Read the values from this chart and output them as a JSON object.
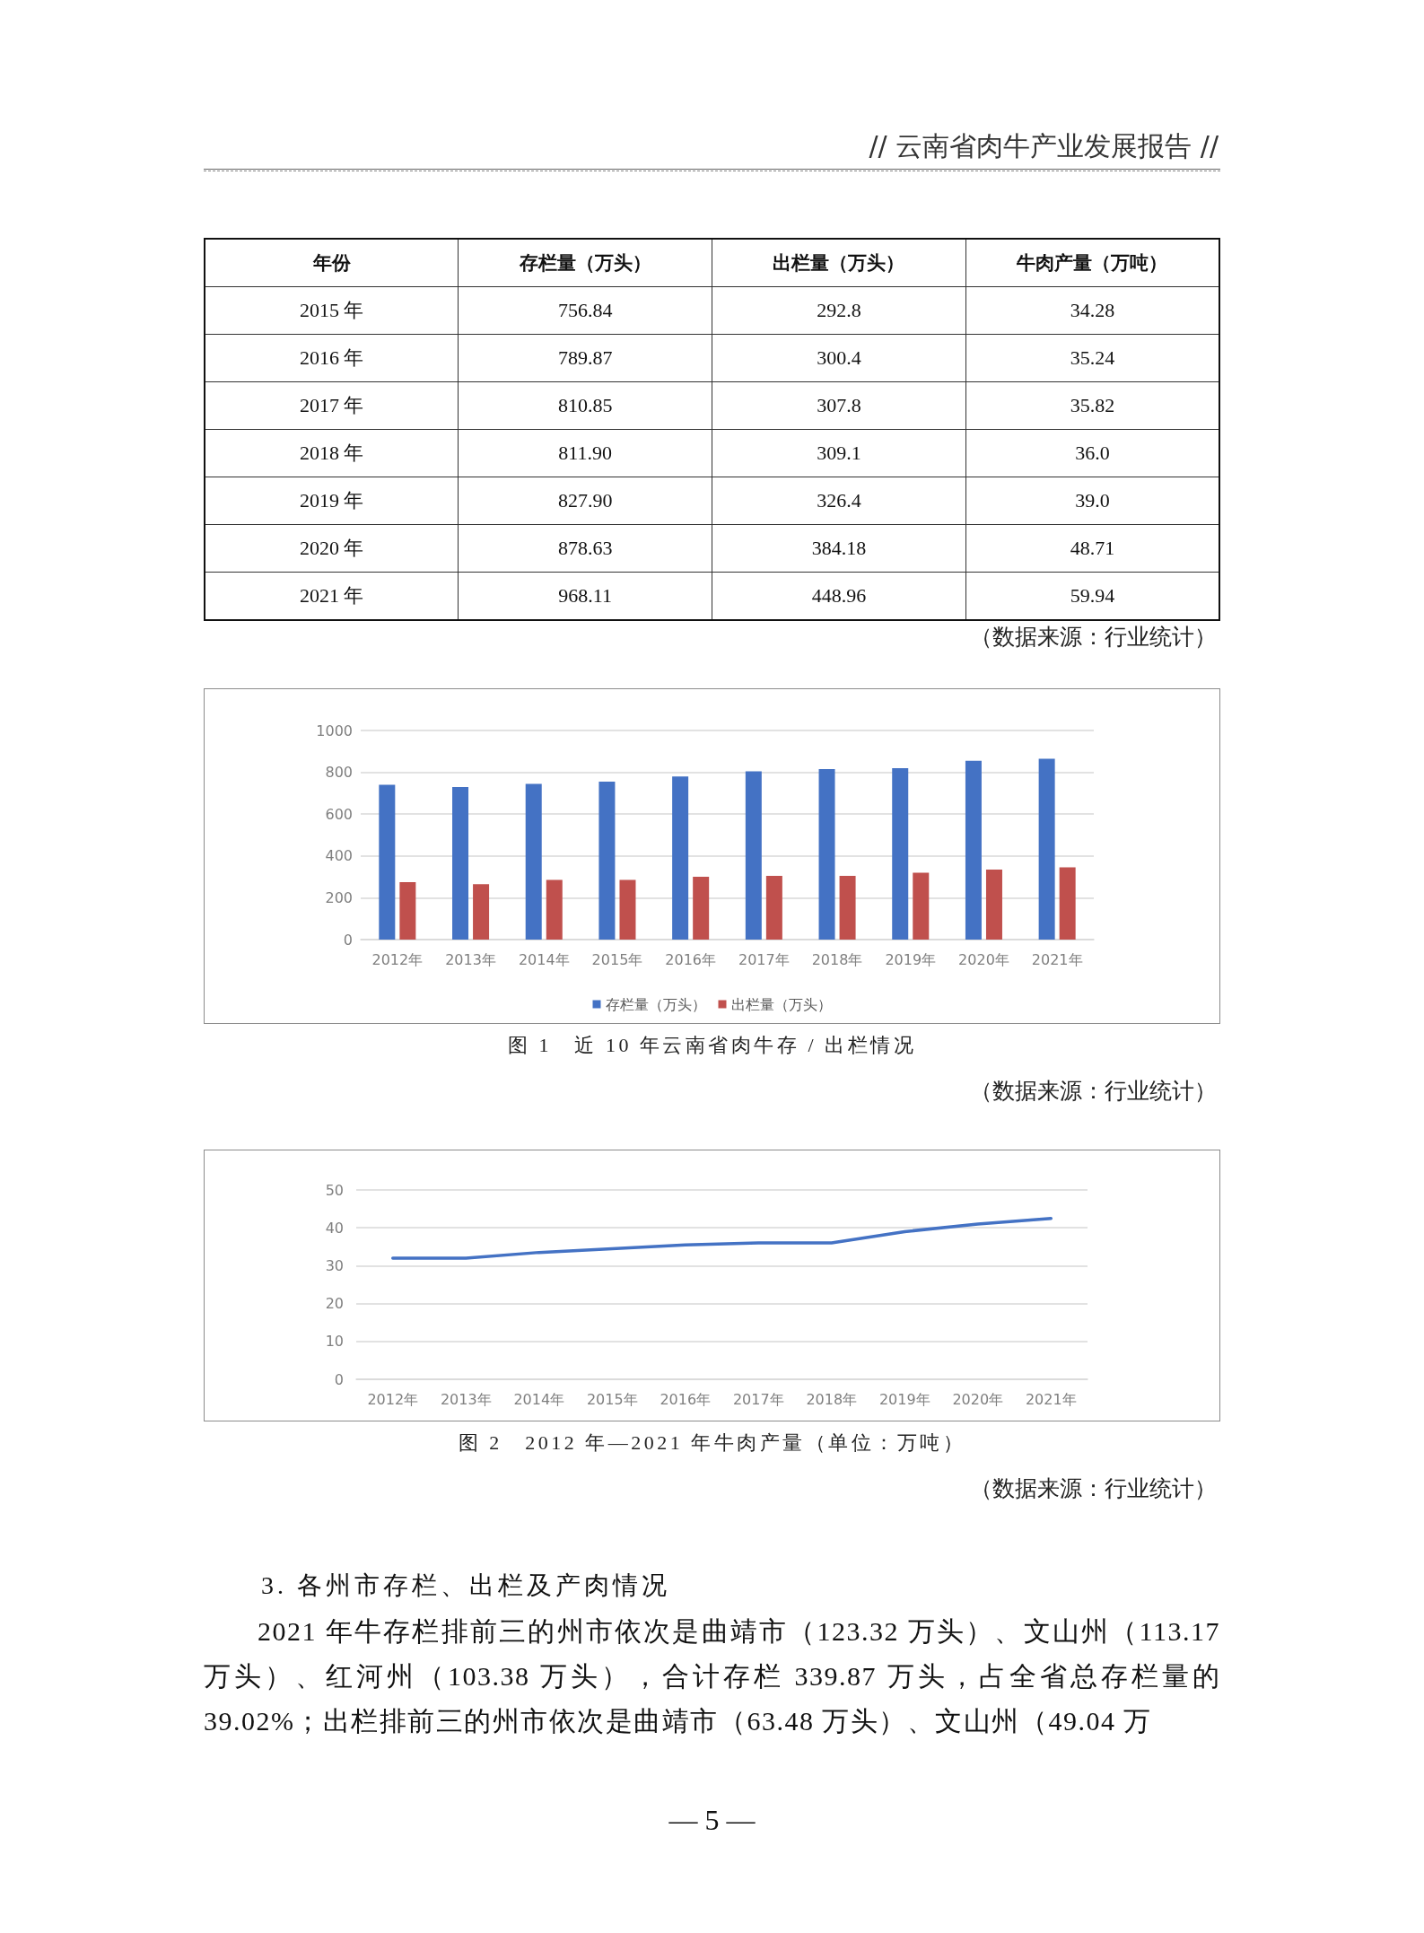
{
  "chart_data": [
    {
      "type": "heatmap",
      "title": "// 云南省肉牛产业发展报告 //",
      "ylabel": "年份",
      "categories": [
        "存栏量（万头）",
        "出栏量（万头）",
        "牛肉产量（万吨）"
      ],
      "y_categories": [
        "2015 年",
        "2016 年",
        "2017 年",
        "2018 年",
        "2019 年",
        "2020 年",
        "2021 年"
      ],
      "cells": [
        [
          756.84,
          292.8,
          34.28
        ],
        [
          789.87,
          300.4,
          35.24
        ],
        [
          810.85,
          307.8,
          35.82
        ],
        [
          811.9,
          309.1,
          36.0
        ],
        [
          827.9,
          326.4,
          39.0
        ],
        [
          878.63,
          384.18,
          48.71
        ],
        [
          968.11,
          448.96,
          59.94
        ]
      ],
      "cell_labels": [
        [
          "756.84",
          "292.8",
          "34.28"
        ],
        [
          "789.87",
          "300.4",
          "35.24"
        ],
        [
          "810.85",
          "307.8",
          "35.82"
        ],
        [
          "811.90",
          "309.1",
          "36.0"
        ],
        [
          "827.90",
          "326.4",
          "39.0"
        ],
        [
          "878.63",
          "384.18",
          "48.71"
        ],
        [
          "968.11",
          "448.96",
          "59.94"
        ]
      ],
      "annotations": [
        "（数据来源：行业统计）"
      ]
    },
    {
      "type": "bar",
      "title": "图 1　近 10 年云南省肉牛存 / 出栏情况",
      "categories": [
        "2012年",
        "2013年",
        "2014年",
        "2015年",
        "2016年",
        "2017年",
        "2018年",
        "2019年",
        "2020年",
        "2021年"
      ],
      "series": [
        {
          "name": "存栏量（万头）",
          "color": "#4472c4",
          "values": [
            740,
            730,
            745,
            755,
            780,
            805,
            815,
            820,
            855,
            865
          ]
        },
        {
          "name": "出栏量（万头）",
          "color": "#c0504d",
          "values": [
            275,
            265,
            285,
            285,
            300,
            305,
            305,
            320,
            335,
            345
          ]
        }
      ],
      "ylim": [
        0,
        1000
      ],
      "yticks": [
        0,
        200,
        400,
        600,
        800,
        1000
      ],
      "grid": "y",
      "legend": "bottom",
      "annotations": [
        "（数据来源：行业统计）"
      ]
    },
    {
      "type": "line",
      "title": "图 2　2012 年—2021 年牛肉产量（单位：万吨）",
      "categories": [
        "2012年",
        "2013年",
        "2014年",
        "2015年",
        "2016年",
        "2017年",
        "2018年",
        "2019年",
        "2020年",
        "2021年"
      ],
      "values": [
        32,
        32,
        33.5,
        34.5,
        35.5,
        36,
        36,
        39,
        41,
        42.5
      ],
      "color": "#4472c4",
      "ylim": [
        0,
        50
      ],
      "yticks": [
        0,
        10,
        20,
        30,
        40,
        50
      ],
      "grid": "y",
      "marker": "none",
      "annotations": [
        "（数据来源：行业统计）"
      ]
    },
    {
      "type": "other",
      "title": "3. 各州市存栏、出栏及产肉情况",
      "annotations": [
        "2021 年牛存栏排前三的州市依次是曲靖市（123.32 万头）、文山州（113.17 万头）、红河州（103.38 万头），合计存栏 339.87 万头，占全省总存栏量的 39.02%；出栏排前三的州市依次是曲靖市（63.48 万头）、文山州（49.04 万",
        "— 5 —"
      ]
    }
  ]
}
